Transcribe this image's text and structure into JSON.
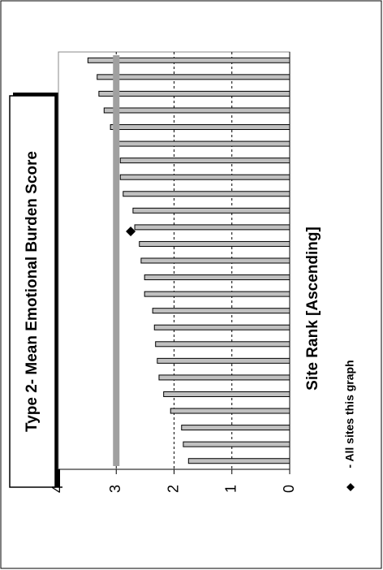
{
  "chart_data": {
    "type": "bar",
    "orientation": "rotated",
    "title": "Type 2- Mean Emotional Burden Score",
    "x_label": "Site Rank [Ascending]",
    "categories": [
      null,
      null,
      null,
      null,
      null,
      null,
      null,
      null,
      null,
      null,
      null,
      null,
      null,
      null,
      null,
      null,
      null,
      null,
      null,
      null,
      null,
      null,
      null,
      null,
      null
    ],
    "values": [
      1.75,
      1.84,
      1.87,
      2.06,
      2.18,
      2.26,
      2.29,
      2.32,
      2.34,
      2.37,
      2.51,
      2.51,
      2.57,
      2.6,
      2.68,
      2.71,
      2.88,
      2.93,
      2.93,
      2.96,
      3.1,
      3.21,
      3.3,
      3.33,
      3.49
    ],
    "color": "#c0c0c0",
    "reference_line": 3,
    "overall_marker": {
      "label": "- All sites this graph",
      "value": 2.75,
      "color": "#000000"
    },
    "ylim": [
      0,
      4
    ],
    "yticks": [
      0,
      1,
      2,
      3,
      4
    ],
    "grid": true
  }
}
